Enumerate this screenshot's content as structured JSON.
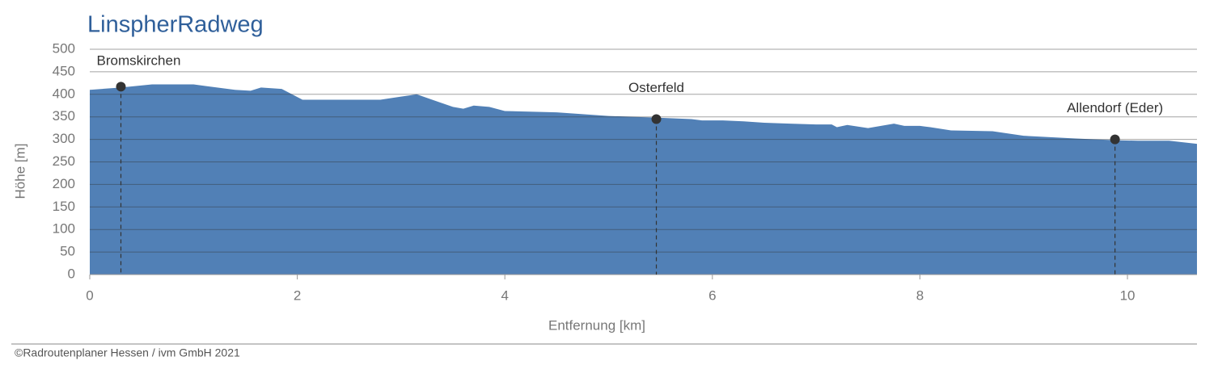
{
  "chart_data": {
    "type": "area",
    "title": "LinspherRadweg",
    "xlabel": "Entfernung [km]",
    "ylabel": "Höhe [m]",
    "x": [
      0,
      0.3,
      0.6,
      1.0,
      1.4,
      1.55,
      1.65,
      1.85,
      2.05,
      2.8,
      3.0,
      3.15,
      3.3,
      3.5,
      3.6,
      3.7,
      3.85,
      4.0,
      4.5,
      5.0,
      5.5,
      5.8,
      5.9,
      6.1,
      6.3,
      6.5,
      6.75,
      7.0,
      7.15,
      7.2,
      7.3,
      7.5,
      7.75,
      7.85,
      8.0,
      8.1,
      8.3,
      8.7,
      9.0,
      9.5,
      9.9,
      10.1,
      10.4,
      10.67
    ],
    "values": [
      410,
      415,
      422,
      422,
      410,
      408,
      415,
      412,
      388,
      388,
      395,
      400,
      388,
      372,
      368,
      375,
      372,
      363,
      360,
      352,
      348,
      345,
      342,
      342,
      340,
      337,
      335,
      333,
      333,
      327,
      332,
      325,
      335,
      330,
      330,
      327,
      320,
      318,
      308,
      302,
      298,
      297,
      297,
      290
    ],
    "color": "#5180b6",
    "xlim": [
      0,
      10.67
    ],
    "ylim": [
      0,
      500
    ],
    "xticks": [
      0,
      2,
      4,
      6,
      8,
      10
    ],
    "yticks": [
      0,
      50,
      100,
      150,
      200,
      250,
      300,
      350,
      400,
      450,
      500
    ],
    "grid": true,
    "annotations": [
      {
        "label": "Bromskirchen",
        "x": 0.3,
        "y": 417
      },
      {
        "label": "Osterfeld",
        "x": 5.46,
        "y": 345
      },
      {
        "label": "Allendorf (Eder)",
        "x": 9.88,
        "y": 300
      }
    ]
  },
  "footer": "©Radroutenplaner Hessen / ivm GmbH 2021"
}
